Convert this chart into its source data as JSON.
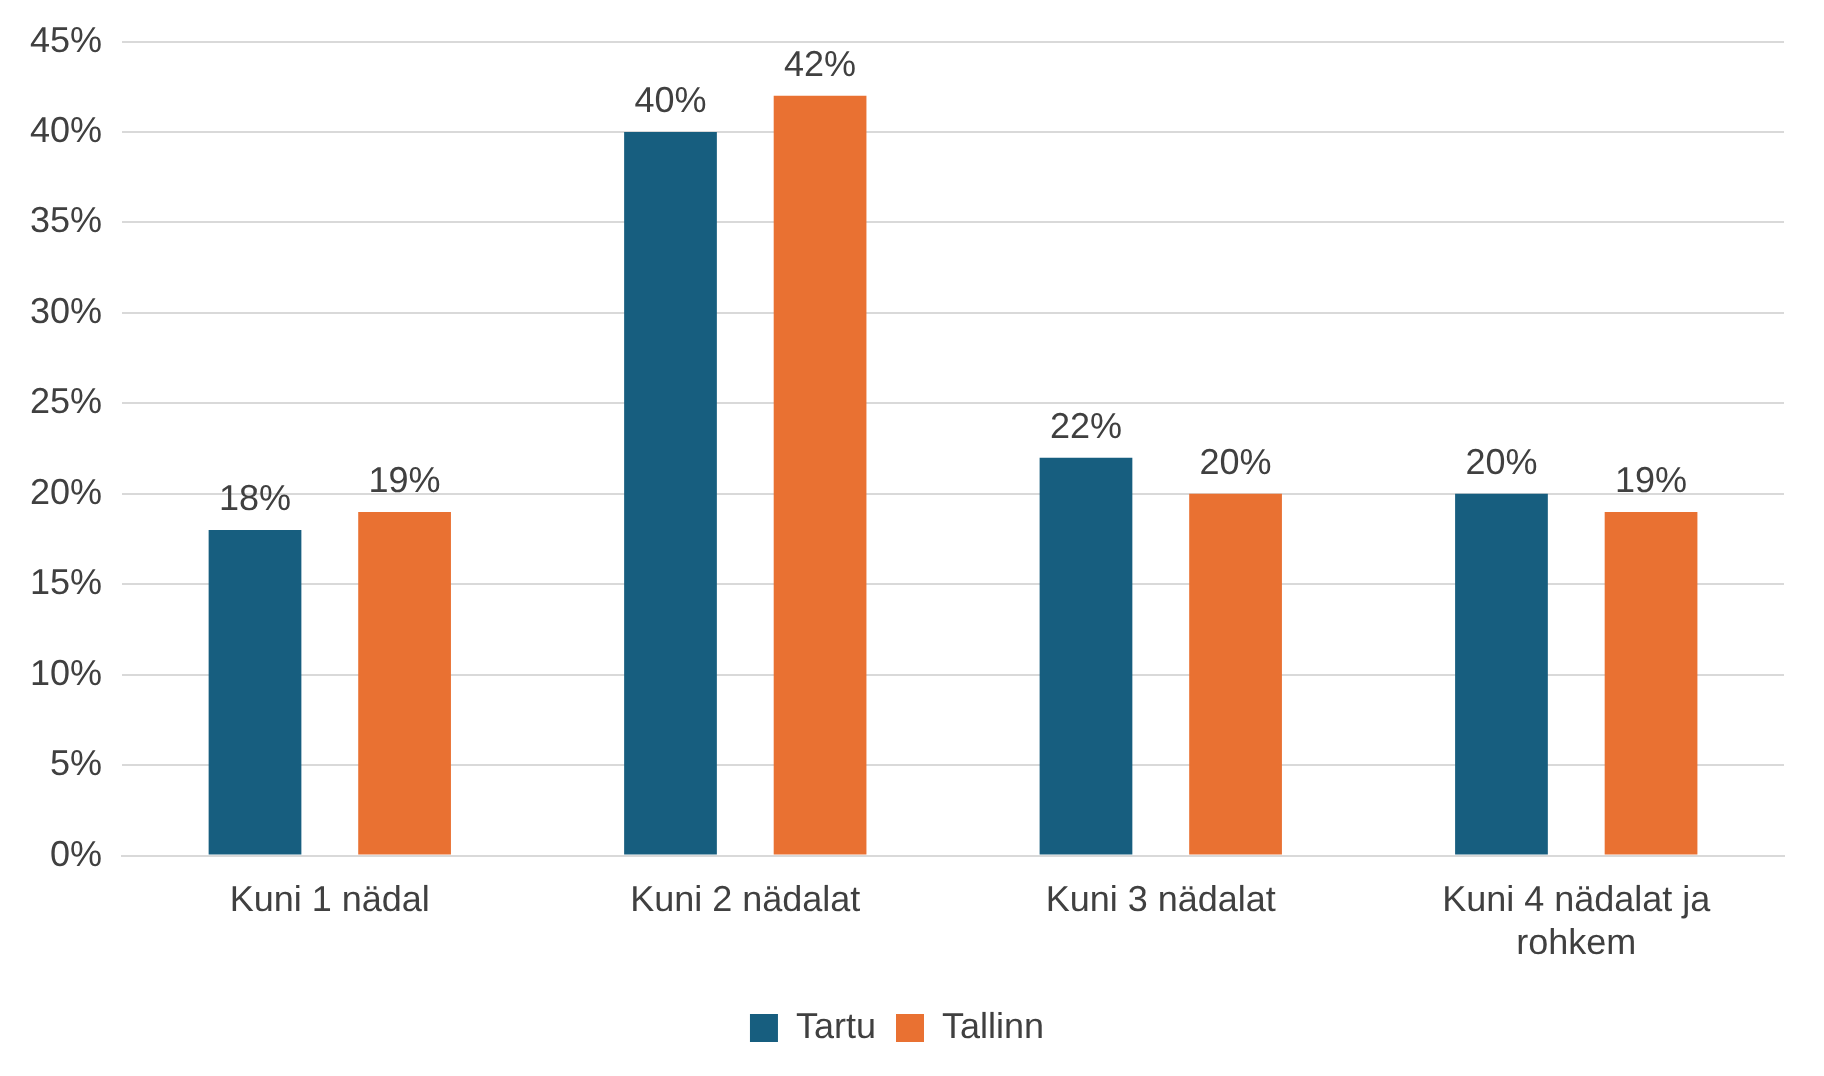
{
  "chart_data": {
    "type": "bar",
    "categories": [
      "Kuni 1 nädal",
      "Kuni 2 nädalat",
      "Kuni 3 nädalat",
      "Kuni 4 nädalat ja rohkem"
    ],
    "series": [
      {
        "name": "Tartu",
        "color": "#175e7f",
        "values": [
          18,
          40,
          22,
          20
        ],
        "value_labels": [
          "18%",
          "40%",
          "22%",
          "20%"
        ]
      },
      {
        "name": "Tallinn",
        "color": "#e97132",
        "values": [
          19,
          42,
          20,
          19
        ],
        "value_labels": [
          "19%",
          "42%",
          "20%",
          "19%"
        ]
      }
    ],
    "ylim": [
      0,
      45
    ],
    "yticks": [
      {
        "value": 0,
        "label": "0%"
      },
      {
        "value": 5,
        "label": "5%"
      },
      {
        "value": 10,
        "label": "10%"
      },
      {
        "value": 15,
        "label": "15%"
      },
      {
        "value": 20,
        "label": "20%"
      },
      {
        "value": 25,
        "label": "25%"
      },
      {
        "value": 30,
        "label": "30%"
      },
      {
        "value": 35,
        "label": "35%"
      },
      {
        "value": 40,
        "label": "40%"
      },
      {
        "value": 45,
        "label": "45%"
      }
    ],
    "grid": "y",
    "legend": "bottom"
  }
}
